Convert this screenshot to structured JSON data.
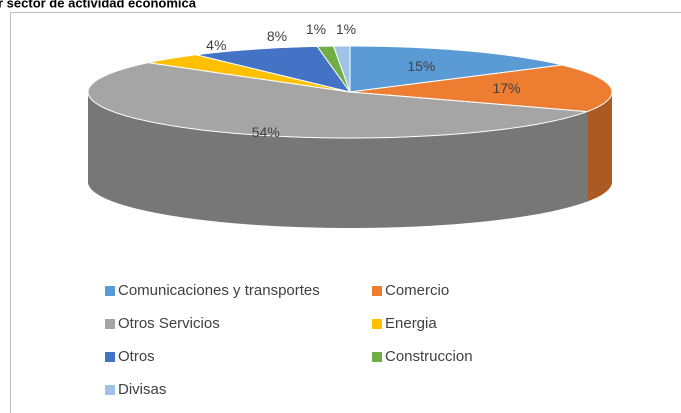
{
  "chart_data": {
    "type": "pie3d",
    "title": "r sector de actividad económica",
    "categories": [
      "Comunicaciones y transportes",
      "Comercio",
      "Otros Servicios",
      "Energia",
      "Otros",
      "Construccion",
      "Divisas"
    ],
    "values": [
      15,
      17,
      54,
      4,
      8,
      1,
      1
    ],
    "value_labels": [
      "15%",
      "17%",
      "54%",
      "4%",
      "8%",
      "1%",
      "1%"
    ],
    "colors": [
      "#5b9bd5",
      "#ed7d31",
      "#a5a5a5",
      "#ffc000",
      "#4472c4",
      "#70ad47",
      "#9dc3e6"
    ],
    "legend": "bottom"
  }
}
